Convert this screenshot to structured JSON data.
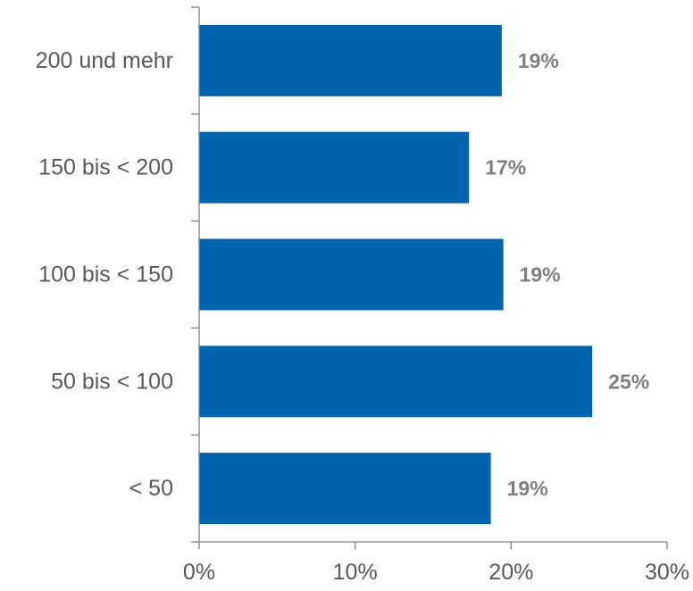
{
  "chart_data": {
    "type": "bar",
    "orientation": "horizontal",
    "categories": [
      "200 und mehr",
      "150 bis < 200",
      "100 bis < 150",
      "50 bis < 100",
      "< 50"
    ],
    "values": [
      19.4,
      17.3,
      19.5,
      25.2,
      18.7
    ],
    "value_labels": [
      "19%",
      "17%",
      "19%",
      "25%",
      "19%"
    ],
    "xlim": [
      0,
      30
    ],
    "x_ticks": [
      0,
      10,
      20,
      30
    ],
    "x_tick_labels": [
      "0%",
      "10%",
      "20%",
      "30%"
    ],
    "title": "",
    "xlabel": "",
    "ylabel": "",
    "grid": false,
    "legend": "none",
    "bar_color": "#0063ad",
    "label_color": "#7f7f7f",
    "text_color": "#595959"
  }
}
